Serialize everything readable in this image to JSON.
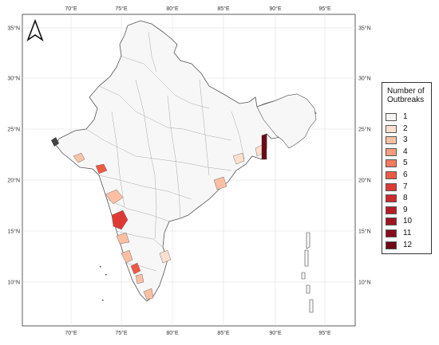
{
  "map": {
    "north_arrow_label": "north-arrow",
    "x_ticks": [
      "70°E",
      "75°E",
      "80°E",
      "85°E",
      "90°E",
      "95°E"
    ],
    "y_ticks": [
      "35°N",
      "30°N",
      "25°N",
      "20°N",
      "15°N",
      "10°N"
    ],
    "colors": {
      "land_fill": "#f7f7f7",
      "border": "#555555",
      "frame": "#333333"
    }
  },
  "legend": {
    "title_line1": "Number of",
    "title_line2": "Outbreaks",
    "items": [
      {
        "label": "1",
        "color": "#f7f4f2"
      },
      {
        "label": "2",
        "color": "#fde0cf"
      },
      {
        "label": "3",
        "color": "#fbbfa3"
      },
      {
        "label": "4",
        "color": "#f99c80"
      },
      {
        "label": "5",
        "color": "#f57a5e"
      },
      {
        "label": "6",
        "color": "#ef5a45"
      },
      {
        "label": "7",
        "color": "#de3a35"
      },
      {
        "label": "8",
        "color": "#cc2a2d"
      },
      {
        "label": "9",
        "color": "#b71d26"
      },
      {
        "label": "10",
        "color": "#a01422"
      },
      {
        "label": "11",
        "color": "#870d1d"
      },
      {
        "label": "12",
        "color": "#6e0816"
      }
    ]
  }
}
